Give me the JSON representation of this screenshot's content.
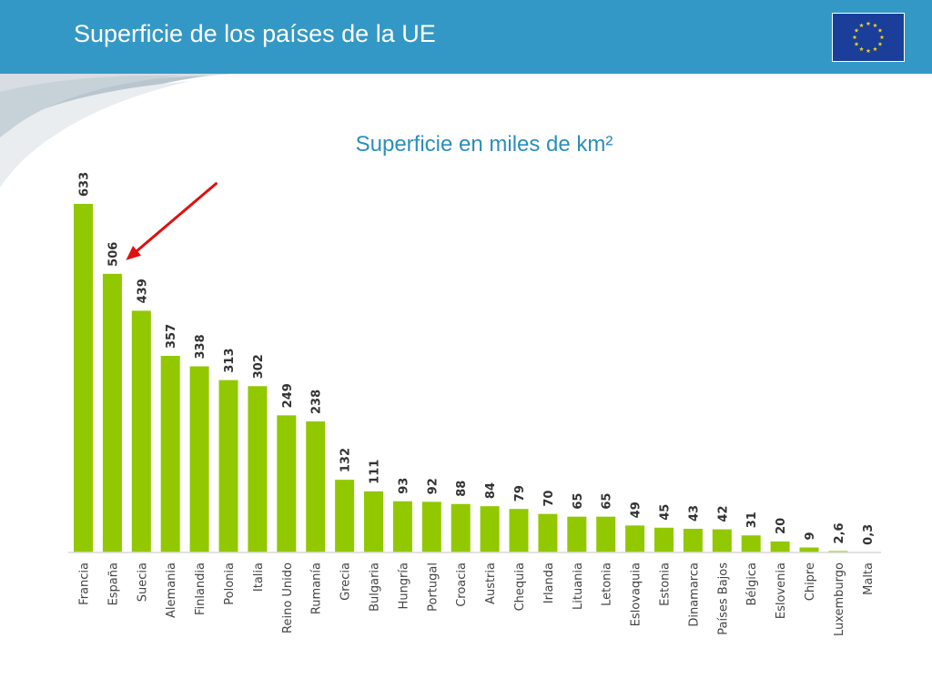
{
  "header": {
    "title": "Superficie de los países de la UE"
  },
  "colors": {
    "header": "#3498c6",
    "bar": "#92c800",
    "arrow": "#e01010",
    "title": "#2a8fbd"
  },
  "icons": {
    "flag": "eu-flag-icon",
    "arrow": "red-arrow-icon"
  },
  "chart_data": {
    "type": "bar",
    "title": "Superficie en miles de km²",
    "xlabel": "",
    "ylabel": "",
    "ylim": [
      0,
      633
    ],
    "grid": false,
    "legend": "none",
    "categories": [
      "Francia",
      "España",
      "Suecia",
      "Alemania",
      "Finlandia",
      "Polonia",
      "Italia",
      "Reino Unido",
      "Rumanía",
      "Grecia",
      "Bulgaria",
      "Hungría",
      "Portugal",
      "Croacia",
      "Austria",
      "Chequia",
      "Irlanda",
      "Lituania",
      "Letonia",
      "Eslovaquia",
      "Estonia",
      "Dinamarca",
      "Países Bajos",
      "Bélgica",
      "Eslovenia",
      "Chipre",
      "Luxemburgo",
      "Malta"
    ],
    "values": [
      633,
      506,
      439,
      357,
      338,
      313,
      302,
      249,
      238,
      132,
      111,
      93,
      92,
      88,
      84,
      79,
      70,
      65,
      65,
      49,
      45,
      43,
      42,
      31,
      20,
      9,
      2.6,
      0.3
    ],
    "value_labels": [
      "633",
      "506",
      "439",
      "357",
      "338",
      "313",
      "302",
      "249",
      "238",
      "132",
      "111",
      "93",
      "92",
      "88",
      "84",
      "79",
      "70",
      "65",
      "65",
      "49",
      "45",
      "43",
      "42",
      "31",
      "20",
      "9",
      "2,6",
      "0,3"
    ],
    "annotations": [
      {
        "type": "arrow",
        "target": "España"
      }
    ]
  }
}
